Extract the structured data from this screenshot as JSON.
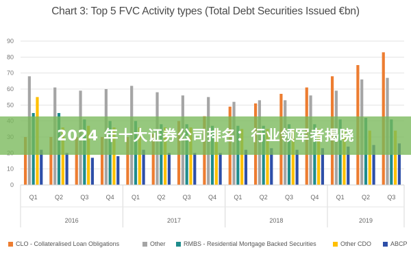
{
  "banner": {
    "text": "2024 年十大证券公司排名：行业领军者揭晓"
  },
  "chart_data": {
    "type": "bar",
    "title": "Chart 3: Top 5 FVC Activity types (Total Debt Securities Issued €bn)",
    "xlabel": "",
    "ylabel": "",
    "ylim": [
      0,
      90
    ],
    "yticks": [
      0,
      10,
      20,
      30,
      40,
      50,
      60,
      70,
      80,
      90
    ],
    "grid": true,
    "legend_position": "bottom",
    "categories": [
      "Q1",
      "Q2",
      "Q3",
      "Q4",
      "Q1",
      "Q2",
      "Q3",
      "Q4",
      "Q1",
      "Q2",
      "Q3",
      "Q4",
      "Q1",
      "Q2",
      "Q3"
    ],
    "year_groups": [
      {
        "label": "2016",
        "count": 4
      },
      {
        "label": "2017",
        "count": 4
      },
      {
        "label": "2018",
        "count": 4
      },
      {
        "label": "2019",
        "count": 3
      }
    ],
    "series": [
      {
        "name": "CLO - Collateralised Loan Obligations",
        "color": "#ED7D31",
        "values": [
          30,
          30,
          30,
          30,
          30,
          32,
          40,
          43,
          49,
          51,
          57,
          61,
          68,
          75,
          83
        ]
      },
      {
        "name": "Other",
        "color": "#A5A5A5",
        "values": [
          68,
          61,
          59,
          60,
          62,
          58,
          56,
          55,
          52,
          53,
          53,
          56,
          59,
          66,
          67
        ]
      },
      {
        "name": "RMBS - Residential Mortgage Backed Securities",
        "color": "#1F8C8C",
        "values": [
          45,
          45,
          41,
          40,
          40,
          38,
          38,
          37,
          37,
          37,
          38,
          38,
          41,
          42,
          41
        ]
      },
      {
        "name": "Other CDO",
        "color": "#FFC000",
        "values": [
          55,
          36,
          37,
          36,
          36,
          36,
          36,
          35,
          35,
          35,
          35,
          35,
          34,
          34,
          34
        ]
      },
      {
        "name": "ABCP",
        "color": "#2E4FA8",
        "values": [
          22,
          20,
          17,
          18,
          22,
          20,
          20,
          20,
          22,
          23,
          22,
          23,
          24,
          25,
          26
        ]
      }
    ]
  }
}
